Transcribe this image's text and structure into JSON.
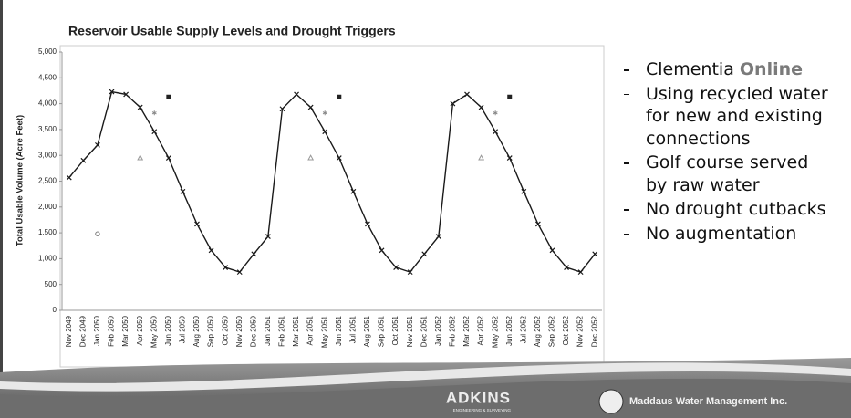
{
  "chart_data": {
    "type": "line",
    "title": "Reservoir Usable Supply Levels and Drought Triggers",
    "y_label": "Total Usable Volume (Acre Feet)",
    "categories": [
      "Nov 2049",
      "Dec 2049",
      "Jan 2050",
      "Feb 2050",
      "Mar 2050",
      "Apr 2050",
      "May 2050",
      "Jun 2050",
      "Jul 2050",
      "Aug 2050",
      "Sep 2050",
      "Oct 2050",
      "Nov 2050",
      "Dec 2050",
      "Jan 2051",
      "Feb 2051",
      "Mar 2051",
      "Apr 2051",
      "May 2051",
      "Jun 2051",
      "Jul 2051",
      "Aug 2051",
      "Sep 2051",
      "Oct 2051",
      "Nov 2051",
      "Dec 2051",
      "Jan 2052",
      "Feb 2052",
      "Mar 2052",
      "Apr 2052",
      "May 2052",
      "Jun 2052",
      "Jul 2052",
      "Aug 2052",
      "Sep 2052",
      "Oct 2052",
      "Nov 2052",
      "Dec 2052"
    ],
    "series": [
      {
        "color": "#1a1a1a",
        "marker": "x",
        "line": true,
        "values": [
          2570,
          2900,
          3200,
          4230,
          4180,
          3930,
          3460,
          2950,
          2300,
          1670,
          1160,
          830,
          740,
          1090,
          1430,
          3900,
          4180,
          3930,
          3460,
          2950,
          2300,
          1670,
          1160,
          830,
          740,
          1090,
          1430,
          4000,
          4180,
          3930,
          3460,
          2950,
          2300,
          1670,
          1160,
          830,
          740,
          1090
        ]
      },
      {
        "color": "#777777",
        "marker": "circle",
        "line": false,
        "values": [
          null,
          null,
          1480,
          null,
          null,
          null,
          null,
          null,
          null,
          null,
          null,
          null,
          null,
          null,
          null,
          null,
          null,
          null,
          null,
          null,
          null,
          null,
          null,
          null,
          null,
          null,
          null,
          null,
          null,
          null,
          null,
          null,
          null,
          null,
          null,
          null,
          null,
          null
        ]
      },
      {
        "color": "#999999",
        "marker": "triangle",
        "line": false,
        "values": [
          null,
          null,
          null,
          null,
          null,
          2950,
          null,
          null,
          null,
          null,
          null,
          null,
          null,
          null,
          null,
          null,
          null,
          2950,
          null,
          null,
          null,
          null,
          null,
          null,
          null,
          null,
          null,
          null,
          null,
          2950,
          null,
          null,
          null,
          null,
          null,
          null,
          null,
          null
        ]
      },
      {
        "color": "#888888",
        "marker": "star",
        "line": false,
        "values": [
          null,
          null,
          null,
          null,
          null,
          null,
          3820,
          null,
          null,
          null,
          null,
          null,
          null,
          null,
          null,
          null,
          null,
          null,
          3820,
          null,
          null,
          null,
          null,
          null,
          null,
          null,
          null,
          null,
          null,
          null,
          3820,
          null,
          null,
          null,
          null,
          null,
          null,
          null
        ]
      },
      {
        "color": "#222222",
        "marker": "square",
        "line": false,
        "values": [
          null,
          null,
          null,
          null,
          null,
          null,
          null,
          4130,
          null,
          null,
          null,
          null,
          null,
          null,
          null,
          null,
          null,
          null,
          null,
          4130,
          null,
          null,
          null,
          null,
          null,
          null,
          null,
          null,
          null,
          null,
          null,
          4130,
          null,
          null,
          null,
          null,
          null,
          null
        ]
      }
    ],
    "ylim": [
      0,
      5000
    ],
    "yticks": [
      0,
      500,
      {
        "value": 1000,
        "label": "1,000"
      },
      {
        "value": 1500,
        "label": "1,500"
      },
      {
        "value": 2000,
        "label": "2,000"
      },
      {
        "value": 2500,
        "label": "2,500"
      },
      {
        "value": 3000,
        "label": "3,000"
      },
      {
        "value": 3500,
        "label": "3,500"
      },
      {
        "value": 4000,
        "label": "4,000"
      },
      {
        "value": 4500,
        "label": "4,500"
      },
      {
        "value": 5000,
        "label": "5,000"
      }
    ],
    "grid": false
  },
  "bullets": [
    [
      "Clementia",
      "Online"
    ],
    [
      "Using recycled water for new and existing connections"
    ],
    [
      "Golf course served by raw water"
    ],
    [
      "No drought cutbacks"
    ],
    [
      "No augmentation"
    ]
  ],
  "footer": {
    "logo1": "ADKINS",
    "logo1_sub": "ENGINEERING & SURVEYING",
    "logo2": "Maddaus Water Management Inc."
  }
}
